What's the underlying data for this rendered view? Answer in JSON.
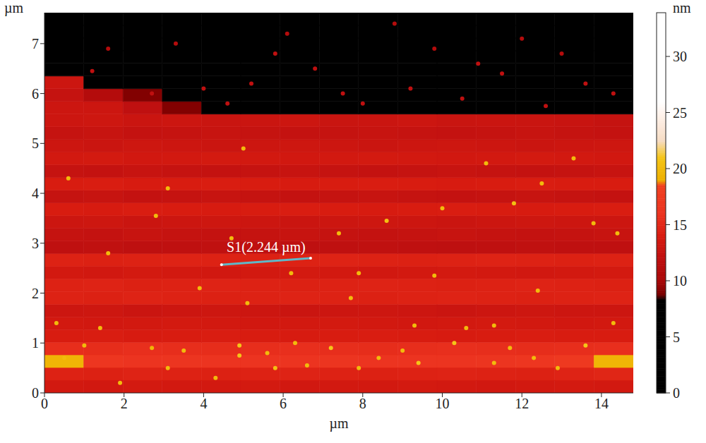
{
  "chart_data": {
    "type": "heatmap",
    "x_label": "µm",
    "y_label": "µm",
    "xlim": [
      0,
      14.8
    ],
    "ylim": [
      0,
      7.62
    ],
    "xticks": [
      0,
      2,
      4,
      6,
      8,
      10,
      12,
      14
    ],
    "yticks": [
      0,
      1,
      2,
      3,
      4,
      5,
      6,
      7
    ],
    "grid": false,
    "cells": [
      [
        13.5,
        13.4,
        13.6,
        13.5,
        13.5,
        13.6,
        13.4,
        13.5,
        13.5,
        13.6,
        13.5,
        13.4,
        13.5,
        13.6,
        13.5
      ],
      [
        14.5,
        14.4,
        14.6,
        14.5,
        14.4,
        14.5,
        14.6,
        14.5,
        14.4,
        14.5,
        14.6,
        14.5,
        14.4,
        14.6,
        14.8
      ],
      [
        19.5,
        16.5,
        16,
        16.2,
        16,
        16.1,
        16,
        16.2,
        16,
        16.1,
        16,
        16.2,
        16.4,
        17,
        19.5
      ],
      [
        15.5,
        15.4,
        15.6,
        15.5,
        15.4,
        15.5,
        15.6,
        15.5,
        15.4,
        15.5,
        15.6,
        15.5,
        15.4,
        15.5,
        15.6
      ],
      [
        14,
        14.1,
        13.9,
        14,
        14.1,
        14,
        13.9,
        14,
        14.1,
        14,
        13.9,
        14,
        14.1,
        14,
        14
      ],
      [
        13.5,
        13.4,
        13.5,
        13.6,
        13.5,
        13.4,
        13.5,
        13.6,
        13.5,
        13.4,
        13.5,
        13.6,
        13.5,
        13.4,
        13.5
      ],
      [
        13,
        13.1,
        12.9,
        13,
        13.1,
        13,
        12.9,
        13,
        13.1,
        13,
        12.9,
        13,
        13.1,
        13,
        13
      ],
      [
        14.5,
        14.4,
        14.6,
        14.5,
        14.4,
        14.5,
        14.6,
        14.5,
        14.4,
        14.5,
        14.6,
        14.5,
        14.4,
        14.5,
        14.6
      ],
      [
        14.5,
        14.6,
        14.4,
        14.5,
        14.6,
        14.5,
        14.4,
        14.5,
        14.6,
        14.5,
        14.4,
        14.5,
        14.6,
        14.5,
        14.4
      ],
      [
        13.5,
        13.4,
        13.6,
        13.5,
        13.4,
        13.5,
        13.6,
        13.5,
        13.4,
        13.5,
        13.6,
        13.5,
        13.4,
        13.5,
        13.6
      ],
      [
        14.5,
        14.4,
        14.5,
        14.6,
        14.5,
        14.4,
        14.5,
        14.6,
        14.5,
        14.4,
        14.5,
        14.6,
        14.5,
        14.4,
        14.5
      ],
      [
        12,
        12.1,
        11.9,
        12,
        12.1,
        12,
        11.9,
        12,
        12.1,
        12,
        11.9,
        12,
        12.1,
        12,
        12
      ],
      [
        12.5,
        12.4,
        12.6,
        12.5,
        12.4,
        12.5,
        12.6,
        12.5,
        12.4,
        12.5,
        12.6,
        12.5,
        12.4,
        12.5,
        12.6
      ],
      [
        13,
        13.1,
        12.9,
        13,
        13.1,
        13,
        12.9,
        13,
        13.1,
        13,
        12.9,
        13,
        13.1,
        13,
        13
      ],
      [
        14,
        13.9,
        14.1,
        14,
        13.9,
        14,
        14.1,
        14,
        13.9,
        14,
        14.1,
        14,
        13.9,
        14,
        14.1
      ],
      [
        12.5,
        12.6,
        12.4,
        12.5,
        12.6,
        12.5,
        12.4,
        12.5,
        12.6,
        12.5,
        12.4,
        12.5,
        12.6,
        12.5,
        12.4
      ],
      [
        14,
        14.1,
        13.9,
        14,
        14.1,
        14,
        13.9,
        14,
        14.1,
        14,
        13.9,
        14,
        14.1,
        14,
        14
      ],
      [
        12.5,
        12.4,
        12.6,
        12.5,
        12.4,
        12.5,
        12.6,
        12.5,
        12.4,
        12.5,
        12.6,
        12.5,
        12.4,
        12.5,
        12.6
      ],
      [
        13.5,
        13.6,
        13.4,
        13.5,
        13.6,
        13.5,
        13.4,
        13.5,
        13.6,
        13.5,
        13.4,
        13.5,
        13.6,
        13.5,
        13.4
      ],
      [
        13,
        12.9,
        13.1,
        13,
        12.9,
        13,
        13.1,
        13,
        12.9,
        13,
        13.1,
        13,
        12.9,
        13,
        13.1
      ],
      [
        12.5,
        12.6,
        12.4,
        12.5,
        12.6,
        12.5,
        12.4,
        12.5,
        12.6,
        12.5,
        12.4,
        12.5,
        12.6,
        12.5,
        12.4
      ],
      [
        13,
        13.1,
        12.9,
        13,
        12.8,
        12.9,
        13,
        12.8,
        12.9,
        13,
        12.8,
        12.9,
        12.8,
        12.7,
        12.5
      ],
      [
        13,
        13,
        12,
        9,
        2,
        2.2,
        1.8,
        2,
        2.1,
        1.9,
        2,
        2.2,
        1.8,
        2,
        2.1
      ],
      [
        12.5,
        11,
        9,
        2,
        2.1,
        1.9,
        2,
        2.2,
        1.8,
        2,
        2.1,
        1.9,
        2,
        2.2,
        1.8
      ],
      [
        13,
        2.2,
        1.8,
        2,
        2.1,
        1.9,
        2,
        2.2,
        1.8,
        2,
        2.1,
        1.9,
        2,
        2.2,
        1.8
      ],
      [
        2,
        2.1,
        1.9,
        2,
        2.2,
        1.8,
        2,
        2.1,
        1.9,
        2,
        2.2,
        1.8,
        2,
        2.1,
        1.9
      ],
      [
        1.9,
        2,
        2.1,
        1.8,
        2,
        2.2,
        1.9,
        2,
        2.1,
        1.8,
        2,
        2.2,
        1.9,
        2,
        2.1
      ],
      [
        2.1,
        1.9,
        2,
        2.2,
        1.8,
        2,
        2.1,
        1.9,
        2,
        2.2,
        1.8,
        2,
        2.1,
        1.9,
        2
      ],
      [
        2,
        2.2,
        1.8,
        2,
        2.1,
        1.9,
        2,
        2.2,
        1.8,
        2,
        2.1,
        1.9,
        2,
        2.2,
        1.8
      ],
      [
        1.8,
        2,
        2.1,
        1.9,
        2,
        2.2,
        1.8,
        2,
        2.1,
        1.9,
        2,
        2.2,
        1.8,
        2,
        2.1
      ]
    ],
    "particles": [
      {
        "x": 0.5,
        "y": 0.7,
        "h": 20
      },
      {
        "x": 1.0,
        "y": 0.95,
        "h": 20
      },
      {
        "x": 1.9,
        "y": 0.2,
        "h": 20
      },
      {
        "x": 2.7,
        "y": 0.9,
        "h": 19.5
      },
      {
        "x": 3.1,
        "y": 0.5,
        "h": 20
      },
      {
        "x": 3.5,
        "y": 0.85,
        "h": 20
      },
      {
        "x": 4.3,
        "y": 0.3,
        "h": 20
      },
      {
        "x": 4.9,
        "y": 0.75,
        "h": 21
      },
      {
        "x": 5.6,
        "y": 0.8,
        "h": 20
      },
      {
        "x": 6.3,
        "y": 1.0,
        "h": 20
      },
      {
        "x": 6.6,
        "y": 0.55,
        "h": 20
      },
      {
        "x": 7.2,
        "y": 0.9,
        "h": 21
      },
      {
        "x": 7.9,
        "y": 0.5,
        "h": 20
      },
      {
        "x": 8.4,
        "y": 0.7,
        "h": 20
      },
      {
        "x": 9.0,
        "y": 0.85,
        "h": 20
      },
      {
        "x": 9.4,
        "y": 0.6,
        "h": 21
      },
      {
        "x": 10.3,
        "y": 1.0,
        "h": 21
      },
      {
        "x": 10.6,
        "y": 1.3,
        "h": 20
      },
      {
        "x": 11.3,
        "y": 0.6,
        "h": 20
      },
      {
        "x": 11.7,
        "y": 0.9,
        "h": 20
      },
      {
        "x": 12.3,
        "y": 0.7,
        "h": 20
      },
      {
        "x": 12.9,
        "y": 0.5,
        "h": 20
      },
      {
        "x": 13.6,
        "y": 0.95,
        "h": 21
      },
      {
        "x": 14.3,
        "y": 1.4,
        "h": 20
      },
      {
        "x": 9.3,
        "y": 1.35,
        "h": 20
      },
      {
        "x": 11.3,
        "y": 1.35,
        "h": 20
      },
      {
        "x": 1.4,
        "y": 1.3,
        "h": 20
      },
      {
        "x": 0.3,
        "y": 1.4,
        "h": 20
      },
      {
        "x": 4.9,
        "y": 0.95,
        "h": 21
      },
      {
        "x": 5.8,
        "y": 0.5,
        "h": 20.5
      },
      {
        "x": 3.1,
        "y": 4.1,
        "h": 20
      },
      {
        "x": 3.9,
        "y": 2.1,
        "h": 20
      },
      {
        "x": 4.7,
        "y": 3.1,
        "h": 20
      },
      {
        "x": 5.1,
        "y": 1.8,
        "h": 20
      },
      {
        "x": 7.4,
        "y": 3.2,
        "h": 20
      },
      {
        "x": 7.7,
        "y": 1.9,
        "h": 20
      },
      {
        "x": 8.6,
        "y": 3.45,
        "h": 20.5
      },
      {
        "x": 11.8,
        "y": 3.8,
        "h": 20.5
      },
      {
        "x": 13.8,
        "y": 3.4,
        "h": 20
      },
      {
        "x": 9.8,
        "y": 2.35,
        "h": 20
      },
      {
        "x": 1.6,
        "y": 2.8,
        "h": 20
      },
      {
        "x": 0.6,
        "y": 4.3,
        "h": 20
      },
      {
        "x": 14.4,
        "y": 3.2,
        "h": 20
      },
      {
        "x": 10.0,
        "y": 3.7,
        "h": 20
      },
      {
        "x": 2.8,
        "y": 3.55,
        "h": 20
      },
      {
        "x": 12.4,
        "y": 2.05,
        "h": 20
      },
      {
        "x": 6.2,
        "y": 2.4,
        "h": 20
      },
      {
        "x": 7.9,
        "y": 2.4,
        "h": 20
      },
      {
        "x": 5.0,
        "y": 4.9,
        "h": 20
      },
      {
        "x": 12.5,
        "y": 4.2,
        "h": 20
      },
      {
        "x": 13.3,
        "y": 4.7,
        "h": 20
      },
      {
        "x": 11.1,
        "y": 4.6,
        "h": 20
      },
      {
        "x": 2.7,
        "y": 6.0,
        "h": 12
      },
      {
        "x": 4.0,
        "y": 6.1,
        "h": 12
      },
      {
        "x": 5.2,
        "y": 6.2,
        "h": 12
      },
      {
        "x": 6.8,
        "y": 6.5,
        "h": 12
      },
      {
        "x": 8.0,
        "y": 5.8,
        "h": 12
      },
      {
        "x": 9.2,
        "y": 6.1,
        "h": 12
      },
      {
        "x": 10.5,
        "y": 5.9,
        "h": 12
      },
      {
        "x": 11.5,
        "y": 6.4,
        "h": 12
      },
      {
        "x": 12.6,
        "y": 5.75,
        "h": 12
      },
      {
        "x": 13.6,
        "y": 6.2,
        "h": 12
      },
      {
        "x": 14.3,
        "y": 6.0,
        "h": 12
      },
      {
        "x": 3.3,
        "y": 7.0,
        "h": 11
      },
      {
        "x": 6.1,
        "y": 7.2,
        "h": 11
      },
      {
        "x": 9.8,
        "y": 6.9,
        "h": 11
      },
      {
        "x": 12.0,
        "y": 7.1,
        "h": 11
      },
      {
        "x": 1.6,
        "y": 6.9,
        "h": 11
      },
      {
        "x": 7.5,
        "y": 6.0,
        "h": 12
      },
      {
        "x": 4.6,
        "y": 5.8,
        "h": 12
      },
      {
        "x": 10.9,
        "y": 6.6,
        "h": 12
      },
      {
        "x": 13.0,
        "y": 6.8,
        "h": 11
      },
      {
        "x": 1.2,
        "y": 6.45,
        "h": 12
      },
      {
        "x": 8.8,
        "y": 7.4,
        "h": 11
      },
      {
        "x": 5.8,
        "y": 6.8,
        "h": 12
      }
    ],
    "annotation": {
      "label": "S1(2.244 µm)",
      "x": [
        4.45,
        6.69
      ],
      "y": [
        2.57,
        2.7
      ],
      "color": "#5fb8c8"
    },
    "colorbar": {
      "label": "nm",
      "range": [
        0,
        33.9
      ],
      "ticks": [
        0,
        5,
        10,
        15,
        20,
        25,
        30
      ],
      "stops": [
        {
          "value": 0,
          "color": "#000000"
        },
        {
          "value": 8.3,
          "color": "#000000"
        },
        {
          "value": 8.8,
          "color": "#7a0000"
        },
        {
          "value": 10,
          "color": "#a80808"
        },
        {
          "value": 12,
          "color": "#bf1010"
        },
        {
          "value": 14,
          "color": "#d81c10"
        },
        {
          "value": 16,
          "color": "#ec3420"
        },
        {
          "value": 18.5,
          "color": "#f04020"
        },
        {
          "value": 19,
          "color": "#eeb000"
        },
        {
          "value": 21,
          "color": "#f5c518"
        },
        {
          "value": 22.5,
          "color": "#f6dcc4"
        },
        {
          "value": 25,
          "color": "#fff4ee"
        },
        {
          "value": 26,
          "color": "#ffffff"
        },
        {
          "value": 33.9,
          "color": "#ffffff"
        }
      ]
    }
  }
}
